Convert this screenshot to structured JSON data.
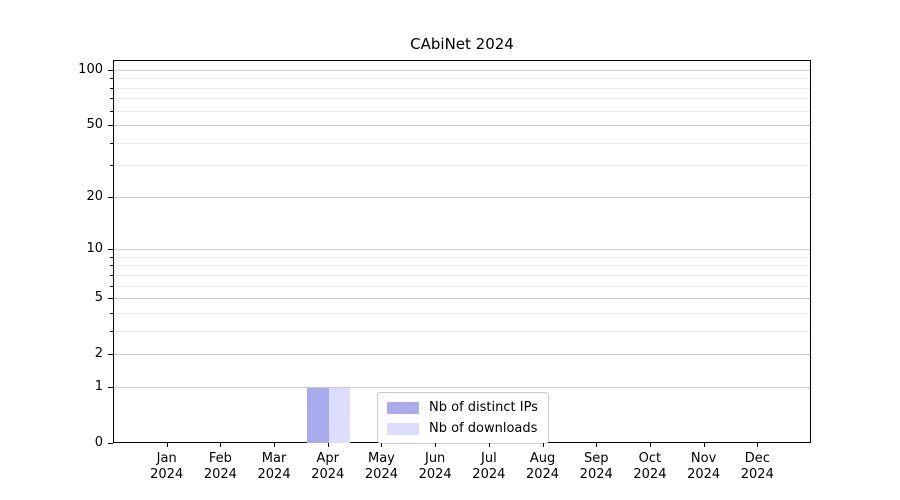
{
  "chart_data": {
    "type": "bar",
    "title": "CAbiNet 2024",
    "categories": [
      "Jan",
      "Feb",
      "Mar",
      "Apr",
      "May",
      "Jun",
      "Jul",
      "Aug",
      "Sep",
      "Oct",
      "Nov",
      "Dec"
    ],
    "category_year": "2024",
    "series": [
      {
        "name": "Nb of distinct IPs",
        "color": "#aaaaee",
        "values": [
          0,
          0,
          0,
          1,
          0,
          0,
          0,
          0,
          0,
          0,
          0,
          0
        ]
      },
      {
        "name": "Nb of downloads",
        "color": "#ddddff",
        "values": [
          0,
          0,
          0,
          1,
          0,
          0,
          0,
          0,
          0,
          0,
          0,
          0
        ]
      }
    ],
    "xlabel": "",
    "ylabel": "",
    "yscale": "log1p",
    "ylim": [
      0,
      113
    ],
    "y_major_ticks": [
      0,
      1,
      2,
      5,
      10,
      20,
      50,
      100
    ],
    "y_minor_ticks": [
      3,
      4,
      6,
      7,
      8,
      9,
      30,
      40,
      60,
      70,
      80,
      90
    ],
    "grid": true,
    "legend_position": "lower-center-inside",
    "colors": {
      "major_grid": "#cccccc",
      "minor_grid": "#ebebeb",
      "spine": "#000000",
      "text": "#000000",
      "background": "#ffffff"
    }
  }
}
